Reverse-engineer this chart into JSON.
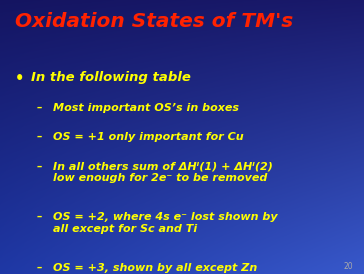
{
  "title": "Oxidation States of TM's",
  "title_color": "#FF2200",
  "title_fontsize": 14.5,
  "bg_tl": [
    0.08,
    0.08,
    0.38
  ],
  "bg_tr": [
    0.1,
    0.1,
    0.42
  ],
  "bg_bl": [
    0.12,
    0.22,
    0.65
  ],
  "bg_br": [
    0.22,
    0.35,
    0.8
  ],
  "bullet_color": "#FFFF00",
  "bullet_text": "In the following table",
  "bullet_fontsize": 9.5,
  "sub_items": [
    "Most important OS’s in boxes",
    "OS = +1 only important for Cu",
    "In all others sum of ΔHᴵ(1) + ΔHᴵ(2)\nlow enough for 2e⁻ to be removed",
    "OS = +2, where 4s e⁻ lost shown by\nall except for Sc and Ti",
    "OS = +3, shown by all except Zn"
  ],
  "sub_fontsize": 8.0,
  "page_number": "20",
  "page_num_color": "#aaaaaa",
  "page_num_fontsize": 5.5,
  "figsize": [
    3.64,
    2.74
  ],
  "dpi": 100
}
